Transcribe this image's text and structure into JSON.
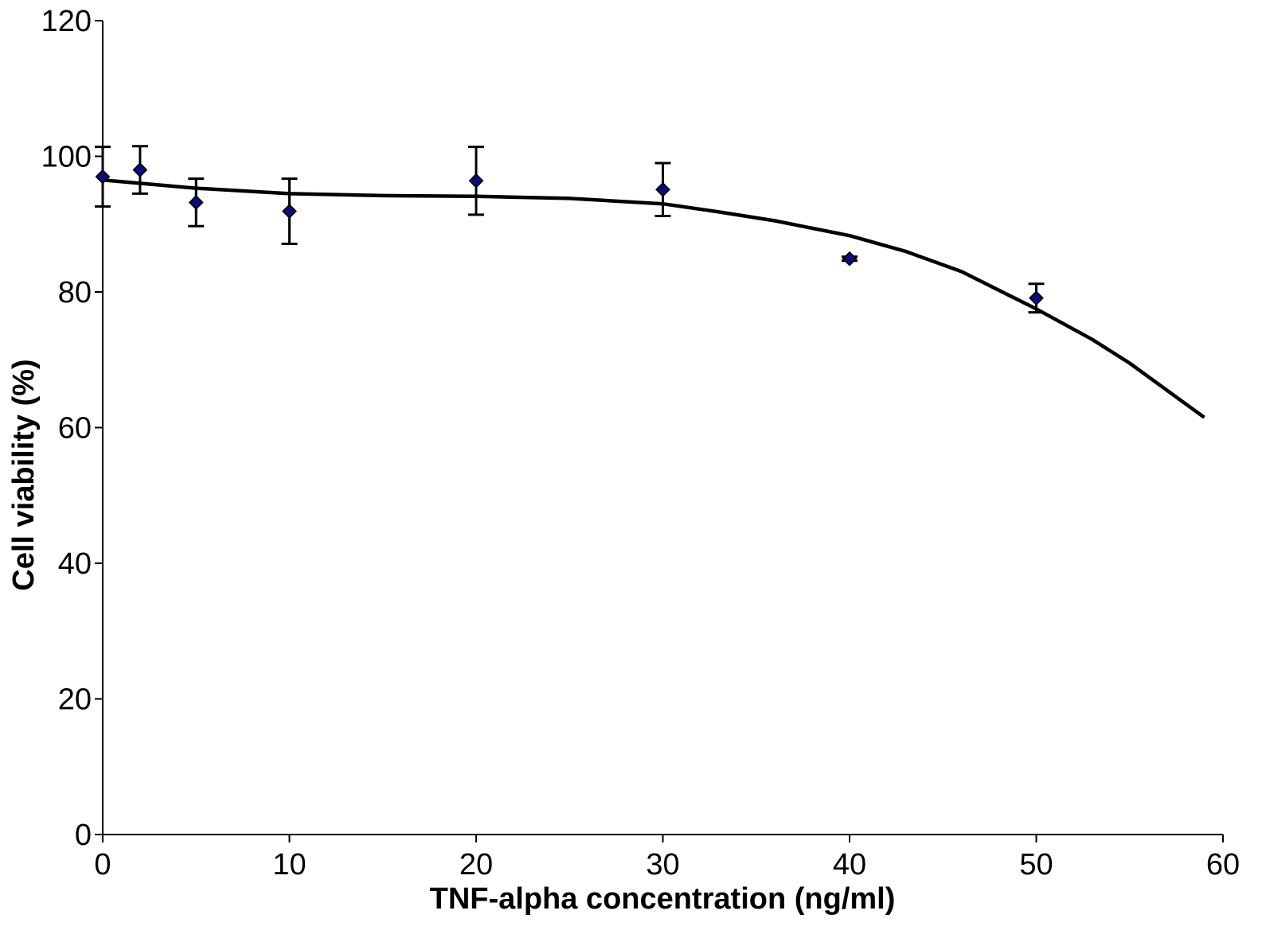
{
  "chart_data": {
    "type": "scatter",
    "xlabel": "TNF-alpha concentration (ng/ml)",
    "ylabel": "Cell viability (%)",
    "xlim": [
      0,
      60
    ],
    "ylim": [
      0,
      120
    ],
    "x_ticks": [
      0,
      10,
      20,
      30,
      40,
      50,
      60
    ],
    "y_ticks": [
      0,
      20,
      40,
      60,
      80,
      100,
      120
    ],
    "grid": false,
    "legend": "none",
    "marker": "diamond",
    "marker_color": "#0a0a8c",
    "series": [
      {
        "x": [
          0,
          2,
          5,
          10,
          20,
          30,
          40,
          50
        ],
        "y": [
          97,
          98,
          93.2,
          91.9,
          96.4,
          95.1,
          84.9,
          79.1
        ],
        "error": [
          4.4,
          3.5,
          3.5,
          4.8,
          5.0,
          3.9,
          0.3,
          2.1
        ]
      }
    ],
    "fit_curve": {
      "x": [
        0,
        5,
        10,
        15,
        20,
        25,
        30,
        33,
        36,
        40,
        43,
        46,
        50,
        53,
        55,
        57,
        59
      ],
      "y": [
        96.5,
        95.3,
        94.5,
        94.2,
        94.1,
        93.8,
        93,
        91.8,
        90.5,
        88.3,
        86,
        83,
        77.5,
        73,
        69.5,
        65.5,
        61.5
      ]
    }
  }
}
